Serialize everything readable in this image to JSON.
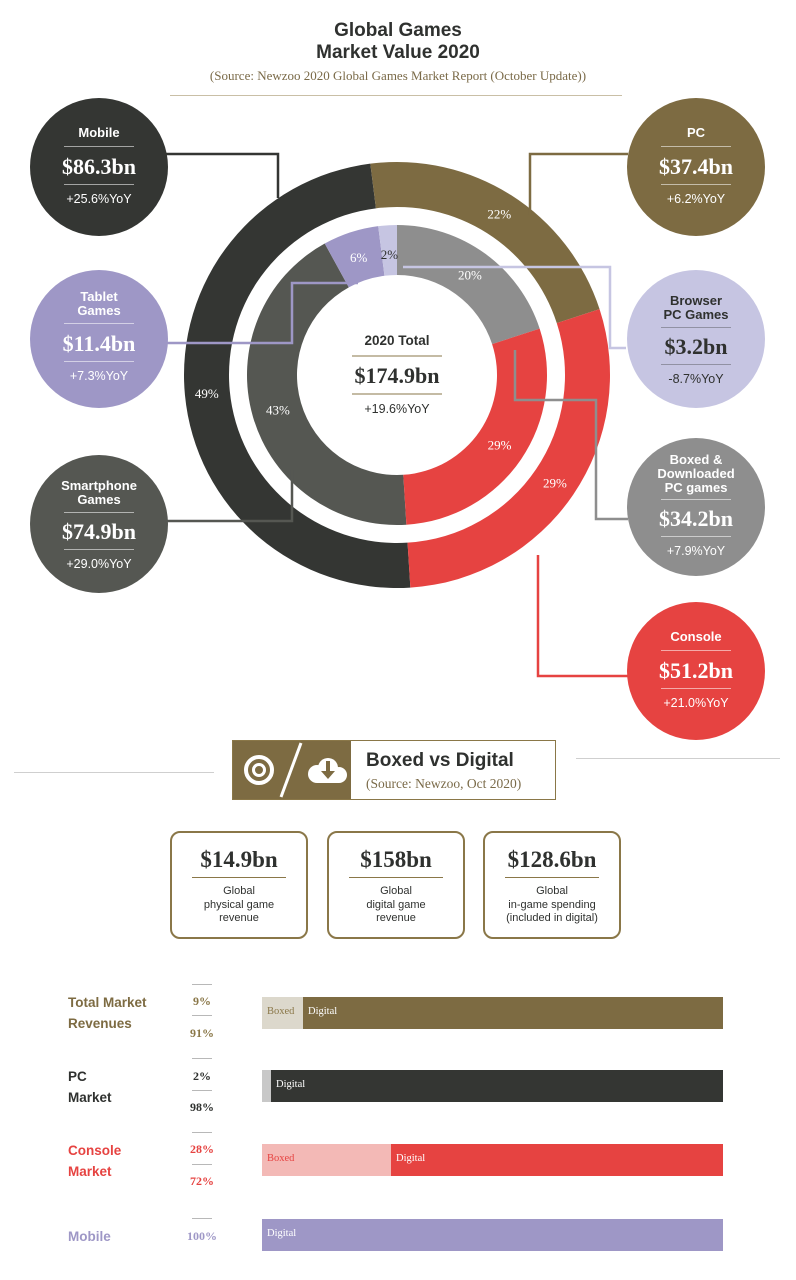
{
  "title_line1": "Global Games",
  "title_line2": "Market Value 2020",
  "source": "(Source: Newzoo 2020 Global Games Market Report (October Update))",
  "center": {
    "label": "2020 Total",
    "value": "$174.9bn",
    "yoy": "+19.6%YoY"
  },
  "bubbles": {
    "mobile": {
      "name": "Mobile",
      "value": "$86.3bn",
      "yoy": "+25.6%YoY"
    },
    "tablet": {
      "name1": "Tablet",
      "name2": "Games",
      "value": "$11.4bn",
      "yoy": "+7.3%YoY"
    },
    "smartphone": {
      "name1": "Smartphone",
      "name2": "Games",
      "value": "$74.9bn",
      "yoy": "+29.0%YoY"
    },
    "pc": {
      "name": "PC",
      "value": "$37.4bn",
      "yoy": "+6.2%YoY"
    },
    "browser": {
      "name1": "Browser",
      "name2": "PC Games",
      "value": "$3.2bn",
      "yoy": "-8.7%YoY"
    },
    "boxed": {
      "name1": "Boxed &",
      "name2": "Downloaded",
      "name3": "PC games",
      "value": "$34.2bn",
      "yoy": "+7.9%YoY"
    },
    "console": {
      "name": "Console",
      "value": "$51.2bn",
      "yoy": "+21.0%YoY"
    }
  },
  "boxed_vs_digital": {
    "title": "Boxed vs Digital",
    "source": "(Source: Newzoo, Oct 2020)",
    "stats": [
      {
        "value": "$14.9bn",
        "l1": "Global",
        "l2": "physical game",
        "l3": "revenue"
      },
      {
        "value": "$158bn",
        "l1": "Global",
        "l2": "digital game",
        "l3": "revenue"
      },
      {
        "value": "$128.6bn",
        "l1": "Global",
        "l2": "in-game spending",
        "l3": "(included in digital)"
      }
    ],
    "rows": [
      {
        "l1": "Total Market",
        "l2": "Revenues",
        "boxed_pct": "9%",
        "digital_pct": "91%",
        "boxed_label": "Boxed",
        "digital_label": "Digital"
      },
      {
        "l1": "PC",
        "l2": "Market",
        "boxed_pct": "2%",
        "digital_pct": "98%",
        "digital_label": "Digital"
      },
      {
        "l1": "Console",
        "l2": "Market",
        "boxed_pct": "28%",
        "digital_pct": "72%",
        "boxed_label": "Boxed",
        "digital_label": "Digital"
      },
      {
        "l1": "Mobile",
        "digital_pct": "100%",
        "digital_label": "Digital"
      }
    ]
  },
  "colors": {
    "mobile": "#343633",
    "pc": "#7d6b42",
    "console": "#e64341",
    "smartphone": "#555752",
    "tablet": "#9e97c6",
    "browser": "#c6c5e2",
    "boxed_pc": "#8e8e8e",
    "gold": "#8a7748",
    "total_boxed": "#dcd8cc",
    "pc_boxed": "#c8c8c8",
    "console_boxed": "#f3b9b6",
    "mobile_bar": "#9e97c6"
  },
  "chart_data": [
    {
      "type": "pie",
      "ring": "outer",
      "categories": [
        "Mobile",
        "PC",
        "Console"
      ],
      "values": [
        49,
        22,
        29
      ],
      "value_labels": [
        "49%",
        "22%",
        "29%"
      ],
      "amounts_bn": [
        86.3,
        37.4,
        51.2
      ]
    },
    {
      "type": "pie",
      "ring": "inner",
      "categories": [
        "Smartphone Games",
        "Tablet Games",
        "Browser PC Games",
        "Boxed & Downloaded PC games",
        "Console"
      ],
      "values": [
        43,
        6,
        2,
        20,
        29
      ],
      "value_labels": [
        "43%",
        "6%",
        "2%",
        "20%",
        "29%"
      ],
      "amounts_bn": [
        74.9,
        11.4,
        3.2,
        34.2,
        51.2
      ]
    },
    {
      "type": "bar",
      "orientation": "horizontal",
      "stacked": true,
      "categories": [
        "Total Market Revenues",
        "PC Market",
        "Console Market",
        "Mobile"
      ],
      "series": [
        {
          "name": "Boxed",
          "values": [
            9,
            2,
            28,
            0
          ]
        },
        {
          "name": "Digital",
          "values": [
            91,
            98,
            72,
            100
          ]
        }
      ]
    }
  ]
}
